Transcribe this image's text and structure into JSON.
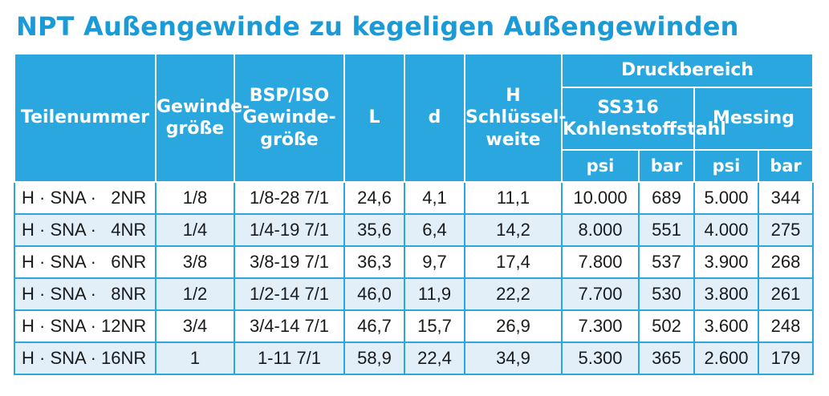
{
  "title": "NPT Außengewinde zu kegeligen Außengewinden",
  "header": {
    "teilenummer": "Teilenummer",
    "gewindegroesse_1": "Gewinde-",
    "gewindegroesse_2": "größe",
    "bsp_1": "BSP/ISO",
    "bsp_2": "Gewinde-",
    "bsp_3": "größe",
    "l": "L",
    "d": "d",
    "h_1": "H",
    "h_2": "Schlüssel-",
    "h_3": "weite",
    "druckbereich": "Druckbereich",
    "ss316_1": "SS316",
    "ss316_2": "Kohlenstoffstahl",
    "messing": "Messing",
    "psi_1": "psi",
    "bar_1": "bar",
    "psi_2": "psi",
    "bar_2": "bar"
  },
  "rows": [
    [
      "H · SNA ·   2NR",
      "1/8",
      "1/8-28 7/1",
      "24,6",
      "4,1",
      "11,1",
      "10.000",
      "689",
      "5.000",
      "344"
    ],
    [
      "H · SNA ·   4NR",
      "1/4",
      "1/4-19 7/1",
      "35,6",
      "6,4",
      "14,2",
      "8.000",
      "551",
      "4.000",
      "275"
    ],
    [
      "H · SNA ·   6NR",
      "3/8",
      "3/8-19 7/1",
      "36,3",
      "9,7",
      "17,4",
      "7.800",
      "537",
      "3.900",
      "268"
    ],
    [
      "H · SNA ·   8NR",
      "1/2",
      "1/2-14 7/1",
      "46,0",
      "11,9",
      "22,2",
      "7.700",
      "530",
      "3.800",
      "261"
    ],
    [
      "H · SNA · 12NR",
      "3/4",
      "3/4-14 7/1",
      "46,7",
      "15,7",
      "26,9",
      "7.300",
      "502",
      "3.600",
      "248"
    ],
    [
      "H · SNA · 16NR",
      "1",
      "1-11 7/1",
      "58,9",
      "22,4",
      "34,9",
      "5.300",
      "365",
      "2.600",
      "179"
    ]
  ],
  "colors": {
    "title": "#1a9ad6",
    "header_bg": "#2ba7e0",
    "header_text": "#ffffff",
    "row_stripe": "#e2eef8",
    "row_plain": "#ffffff"
  }
}
